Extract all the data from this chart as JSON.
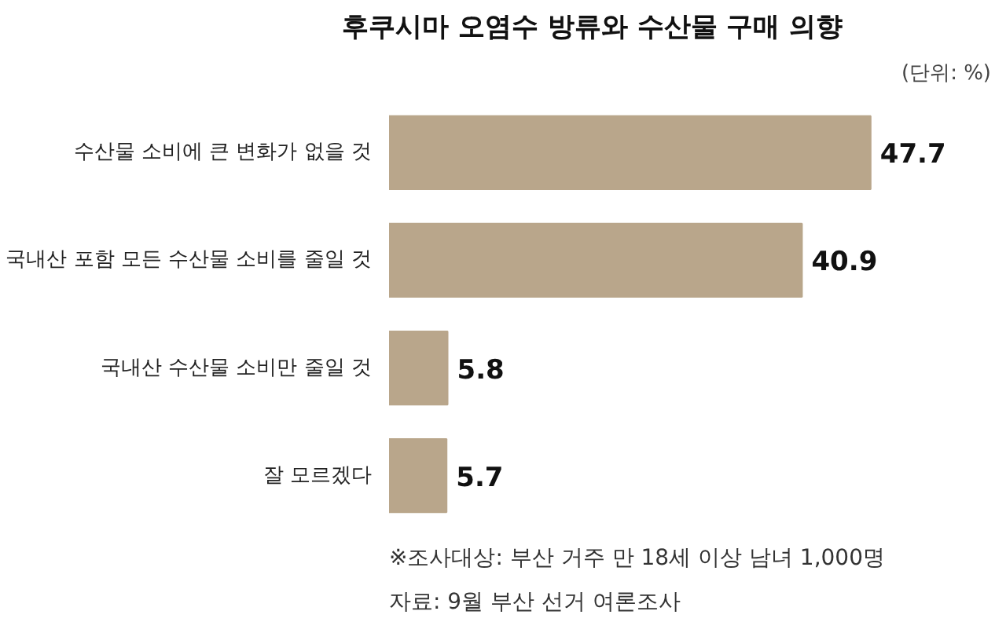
{
  "chart_data": {
    "type": "bar",
    "orientation": "horizontal",
    "title": "후쿠시마 오염수 방류와 수산물 구매 의향",
    "subtitle": "(단위: %)",
    "categories": [
      "수산물 소비에 큰 변화가 없을 것",
      "국내산 포함 모든 수산물 소비를 줄일 것",
      "국내산 수산물 소비만 줄일 것",
      "잘 모르겠다"
    ],
    "values": [
      47.7,
      40.9,
      5.8,
      5.7
    ],
    "color": "#b9a68b",
    "data_labels": true,
    "grid": false,
    "annotations": [
      "※조사대상: 부산 거주 만 18세 이상 남녀 1,000명",
      "자료: 9월 부산 선거 여론조사"
    ]
  }
}
